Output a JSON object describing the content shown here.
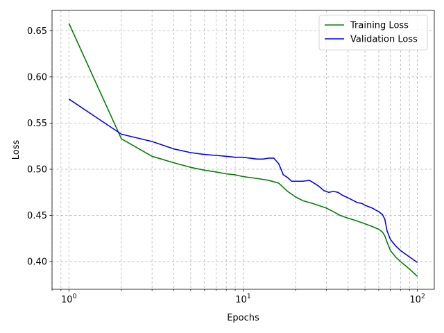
{
  "chart_data": {
    "type": "line",
    "xscale": "log",
    "xlim": [
      0.8,
      125
    ],
    "ylim": [
      0.37,
      0.672
    ],
    "xlabel": "Epochs",
    "ylabel": "Loss",
    "grid": true,
    "grid_minor": true,
    "legend_position": "top-right",
    "xticks": [
      {
        "value": 1,
        "base": "10",
        "exp": "0"
      },
      {
        "value": 10,
        "base": "10",
        "exp": "1"
      },
      {
        "value": 100,
        "base": "10",
        "exp": "2"
      }
    ],
    "yticks": [
      {
        "value": 0.4,
        "label": "0.40"
      },
      {
        "value": 0.45,
        "label": "0.45"
      },
      {
        "value": 0.5,
        "label": "0.50"
      },
      {
        "value": 0.55,
        "label": "0.55"
      },
      {
        "value": 0.6,
        "label": "0.60"
      },
      {
        "value": 0.65,
        "label": "0.65"
      }
    ],
    "series": [
      {
        "name": "Training Loss",
        "color": "#008000",
        "x": [
          1,
          2,
          3,
          4,
          5,
          6,
          7,
          8,
          9,
          10,
          12,
          14,
          16,
          18,
          20,
          22,
          25,
          30,
          33,
          36,
          40,
          45,
          50,
          55,
          60,
          63,
          65,
          67,
          70,
          75,
          80,
          90,
          100
        ],
        "y": [
          0.658,
          0.533,
          0.514,
          0.507,
          0.502,
          0.499,
          0.497,
          0.495,
          0.494,
          0.492,
          0.49,
          0.488,
          0.485,
          0.476,
          0.47,
          0.466,
          0.463,
          0.458,
          0.454,
          0.45,
          0.447,
          0.444,
          0.441,
          0.438,
          0.435,
          0.432,
          0.428,
          0.421,
          0.412,
          0.405,
          0.4,
          0.392,
          0.384
        ]
      },
      {
        "name": "Validation Loss",
        "color": "#0000ff",
        "x": [
          1,
          2,
          3,
          4,
          5,
          6,
          7,
          8,
          9,
          10,
          12,
          13,
          14,
          15,
          16,
          17,
          18,
          19,
          20,
          22,
          24,
          25,
          27,
          29,
          31,
          33,
          35,
          37,
          40,
          43,
          45,
          48,
          50,
          55,
          60,
          63,
          65,
          67,
          70,
          75,
          80,
          90,
          100
        ],
        "y": [
          0.576,
          0.538,
          0.53,
          0.522,
          0.518,
          0.516,
          0.515,
          0.514,
          0.513,
          0.513,
          0.511,
          0.511,
          0.512,
          0.512,
          0.506,
          0.494,
          0.491,
          0.487,
          0.487,
          0.487,
          0.488,
          0.486,
          0.482,
          0.477,
          0.475,
          0.476,
          0.475,
          0.472,
          0.469,
          0.466,
          0.464,
          0.463,
          0.461,
          0.458,
          0.454,
          0.451,
          0.446,
          0.433,
          0.424,
          0.417,
          0.412,
          0.405,
          0.399
        ]
      }
    ]
  }
}
